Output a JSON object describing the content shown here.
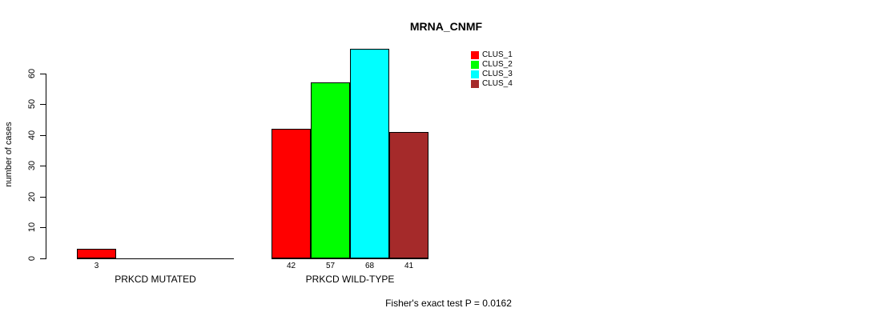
{
  "chart": {
    "title": "MRNA_CNMF",
    "ylabel": "number of cases",
    "footnote": "Fisher's exact test P = 0.0162"
  },
  "chart_data": {
    "type": "bar",
    "title": "MRNA_CNMF",
    "xlabel": "",
    "ylabel": "number of cases",
    "categories": [
      "PRKCD MUTATED",
      "PRKCD WILD-TYPE"
    ],
    "series": [
      {
        "name": "CLUS_1",
        "color": "#ff0000",
        "values": [
          3,
          42
        ]
      },
      {
        "name": "CLUS_2",
        "color": "#00ff00",
        "values": [
          0,
          57
        ]
      },
      {
        "name": "CLUS_3",
        "color": "#00ffff",
        "values": [
          0,
          68
        ]
      },
      {
        "name": "CLUS_4",
        "color": "#a52a2a",
        "values": [
          0,
          41
        ]
      }
    ],
    "yticks": [
      0,
      10,
      20,
      30,
      40,
      50,
      60
    ],
    "ylim": [
      0,
      68
    ],
    "grid": false,
    "bar_value_labels": true,
    "show_zero_value_labels": false,
    "legend_position": "top-right",
    "annotation": "Fisher's exact test P = 0.0162"
  }
}
